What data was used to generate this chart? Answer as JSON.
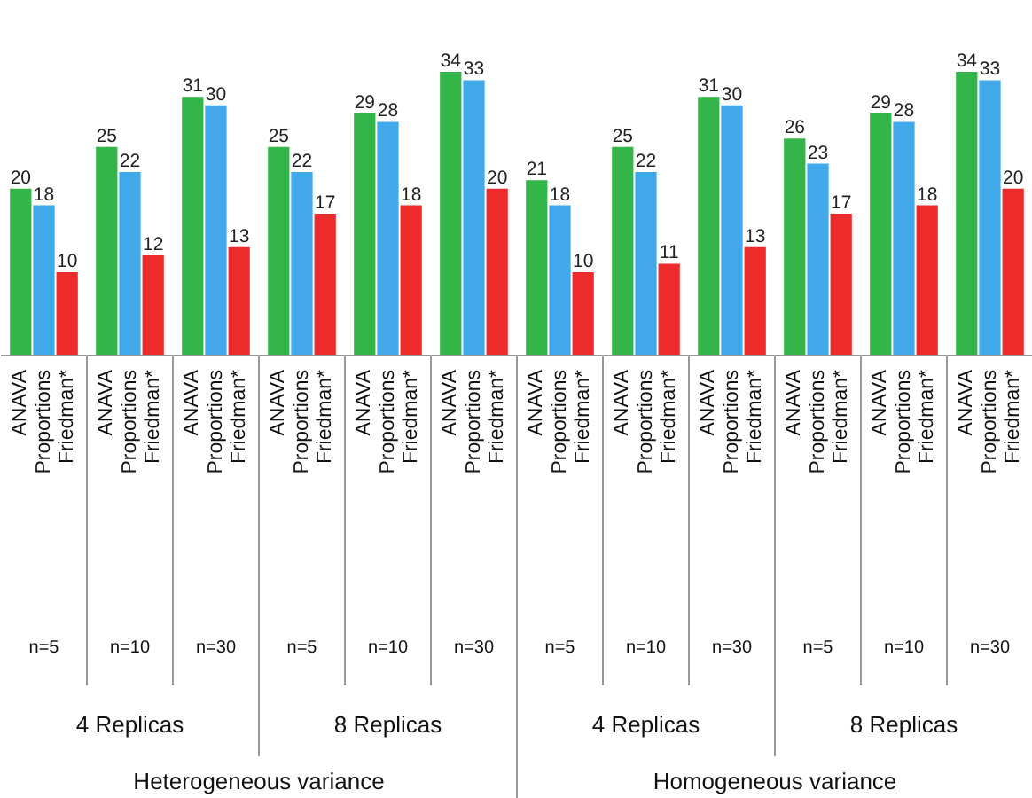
{
  "chart_data": {
    "type": "bar",
    "categories": [
      "n=5",
      "n=10",
      "n=30",
      "n=5",
      "n=10",
      "n=30",
      "n=5",
      "n=10",
      "n=30",
      "n=5",
      "n=10",
      "n=30"
    ],
    "series": [
      {
        "name": "ANAVA",
        "color": "#33b54a",
        "values": [
          20,
          25,
          31,
          25,
          29,
          34,
          21,
          25,
          31,
          26,
          29,
          34
        ]
      },
      {
        "name": "Proportions",
        "color": "#41a9e9",
        "values": [
          18,
          22,
          30,
          22,
          28,
          33,
          18,
          22,
          30,
          23,
          28,
          33
        ]
      },
      {
        "name": "Friedman*",
        "color": "#ee2b2b",
        "values": [
          10,
          12,
          13,
          17,
          18,
          20,
          10,
          11,
          13,
          17,
          18,
          20
        ]
      }
    ],
    "data_labels": true,
    "grid": false,
    "annotations": [
      "4 Replicas",
      "8 Replicas",
      "4 Replicas",
      "8 Replicas",
      "Heterogeneous variance",
      "Homogeneous variance"
    ]
  }
}
